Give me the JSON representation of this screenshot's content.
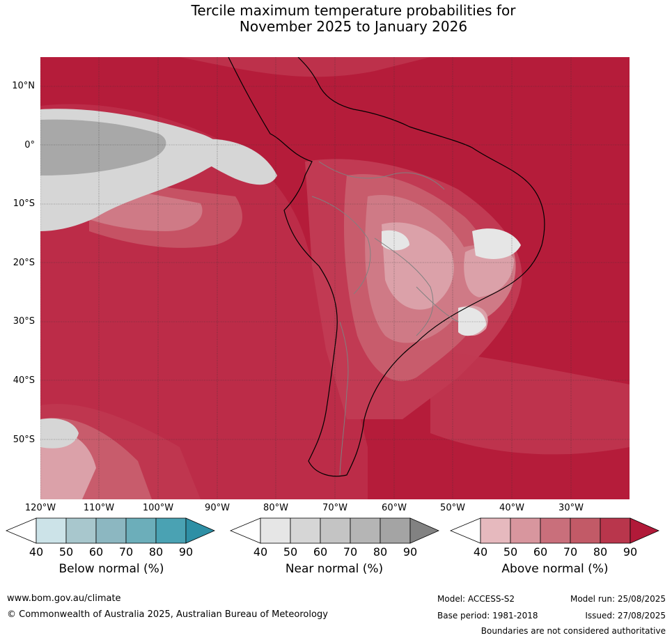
{
  "title": {
    "line1": "Tercile maximum temperature probabilities for",
    "line2": "November 2025 to January 2026"
  },
  "map": {
    "lat_labels": [
      "10°N",
      "0°",
      "10°S",
      "20°S",
      "30°S",
      "40°S",
      "50°S"
    ],
    "lon_labels": [
      "120°W",
      "110°W",
      "100°W",
      "90°W",
      "80°W",
      "70°W",
      "60°W",
      "50°W",
      "40°W",
      "30°W"
    ],
    "colors": {
      "ocean_base": "#b51c3a",
      "above_80": "#c13a53",
      "above_70": "#c85c6c",
      "above_60": "#cf7a86",
      "above_50": "#dba1a9",
      "near_50": "#d6d6d6",
      "near_80": "#a8a8a8",
      "coast": "#000000",
      "borders": "#808080"
    }
  },
  "legends": [
    {
      "title": "Below normal (%)",
      "ticks": [
        "40",
        "50",
        "60",
        "70",
        "80",
        "90"
      ],
      "colors": [
        "#ffffff",
        "#cce3e8",
        "#a8c7cd",
        "#8cb7c1",
        "#6caeba",
        "#4aa2b3",
        "#2e8fa5"
      ]
    },
    {
      "title": "Near normal (%)",
      "ticks": [
        "40",
        "50",
        "60",
        "70",
        "80",
        "90"
      ],
      "colors": [
        "#ffffff",
        "#e6e6e6",
        "#d6d6d6",
        "#c4c4c4",
        "#b5b5b5",
        "#a4a4a4",
        "#828282"
      ]
    },
    {
      "title": "Above normal (%)",
      "ticks": [
        "40",
        "50",
        "60",
        "70",
        "80",
        "90"
      ],
      "colors": [
        "#ffffff",
        "#e6b9be",
        "#d8969e",
        "#c96f7b",
        "#c25a67",
        "#b9364c",
        "#b11a39"
      ]
    }
  ],
  "footer": {
    "website": "www.bom.gov.au/climate",
    "copyright": "© Commonwealth of Australia 2025, Australian Bureau of Meteorology",
    "model": "Model: ACCESS-S2",
    "model_run": "Model run: 25/08/2025",
    "base_period": "Base period: 1981-2018",
    "issued": "Issued: 27/08/2025",
    "disclaimer": "Boundaries are not considered authoritative"
  }
}
